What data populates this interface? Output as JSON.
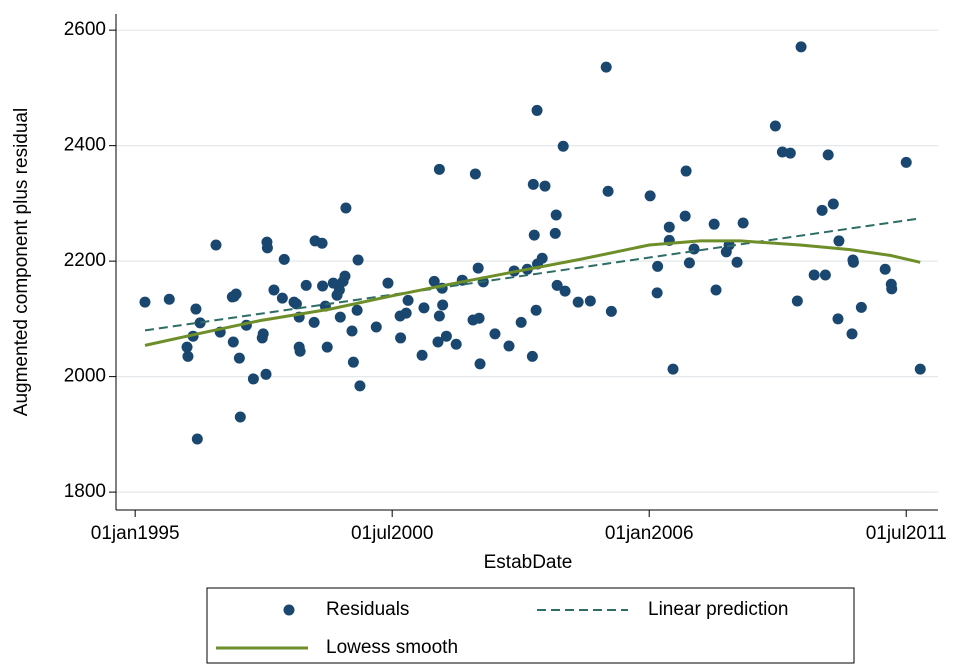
{
  "chart_data": {
    "type": "scatter",
    "x_label": "EstabDate",
    "y_label": "Augmented component plus residual",
    "xlim": [
      1994.59,
      2012.18
    ],
    "ylim": [
      1769,
      2628
    ],
    "xticks": [
      {
        "value": 1995.0,
        "label": "01jan1995"
      },
      {
        "value": 2000.5,
        "label": "01jul2000"
      },
      {
        "value": 2006.0,
        "label": "01jan2006"
      },
      {
        "value": 2011.5,
        "label": "01jul2011"
      }
    ],
    "yticks": [
      1800,
      2000,
      2200,
      2400,
      2600
    ],
    "grid": true,
    "legend": "bottom",
    "series": [
      {
        "name": "Residuals",
        "type": "scatter",
        "color": "#1a476f",
        "x": [
          1995.21,
          1995.73,
          1996.11,
          1996.13,
          1996.24,
          1996.3,
          1996.33,
          1996.39,
          1996.73,
          1996.82,
          1997.08,
          1997.1,
          1997.12,
          1997.16,
          1997.23,
          1997.25,
          1997.38,
          1997.53,
          1997.72,
          1997.74,
          1997.8,
          1997.82,
          1997.83,
          1997.97,
          1998.15,
          1998.19,
          1998.4,
          1998.45,
          1998.51,
          1998.51,
          1998.53,
          1998.66,
          1998.83,
          1998.85,
          1999.0,
          1999.01,
          1999.07,
          1999.11,
          1999.24,
          1999.32,
          1999.37,
          1999.39,
          1999.45,
          1999.49,
          1999.51,
          1999.64,
          1999.67,
          1999.75,
          1999.77,
          1999.81,
          2000.16,
          2000.41,
          2000.67,
          2000.68,
          2000.8,
          2000.84,
          2001.14,
          2001.18,
          2001.4,
          2001.48,
          2001.51,
          2001.51,
          2001.57,
          2001.58,
          2001.66,
          2001.87,
          2002.0,
          2002.23,
          2002.28,
          2002.34,
          2002.36,
          2002.38,
          2002.45,
          2002.7,
          2003.0,
          2003.11,
          2003.26,
          2003.39,
          2003.5,
          2003.52,
          2003.54,
          2003.58,
          2003.6,
          2003.61,
          2003.71,
          2003.77,
          2003.99,
          2004.01,
          2004.03,
          2004.16,
          2004.2,
          2004.48,
          2004.74,
          2005.08,
          2005.12,
          2005.19,
          2006.02,
          2006.17,
          2006.18,
          2006.43,
          2006.43,
          2006.51,
          2006.77,
          2006.79,
          2006.86,
          2006.96,
          2007.39,
          2007.43,
          2007.65,
          2007.71,
          2007.88,
          2008.01,
          2008.7,
          2008.85,
          2009.02,
          2009.17,
          2009.25,
          2009.53,
          2009.7,
          2009.77,
          2009.83,
          2009.94,
          2010.04,
          2010.06,
          2010.34,
          2010.36,
          2010.37,
          2010.54,
          2011.05,
          2011.18,
          2011.19,
          2011.5,
          2011.8
        ],
        "values": [
          2129,
          2134,
          2051,
          2035,
          2070,
          2117,
          1892,
          2093,
          2228,
          2077,
          2138,
          2060,
          2139,
          2143,
          2032,
          1930,
          2089,
          1996,
          2067,
          2074,
          2004,
          2233,
          2223,
          2150,
          2136,
          2203,
          2129,
          2126,
          2103,
          2051,
          2044,
          2158,
          2094,
          2235,
          2231,
          2157,
          2122,
          2051,
          2162,
          2141,
          2150,
          2103,
          2165,
          2174,
          2292,
          2079,
          2025,
          2115,
          2202,
          1984,
          2086,
          2162,
          2105,
          2067,
          2110,
          2132,
          2037,
          2119,
          2165,
          2060,
          2105,
          2359,
          2153,
          2124,
          2070,
          2056,
          2167,
          2098,
          2351,
          2188,
          2101,
          2022,
          2164,
          2074,
          2053,
          2183,
          2094,
          2186,
          2035,
          2333,
          2245,
          2115,
          2461,
          2195,
          2205,
          2330,
          2248,
          2280,
          2158,
          2399,
          2148,
          2129,
          2131,
          2536,
          2321,
          2113,
          2313,
          2145,
          2191,
          2236,
          2259,
          2013,
          2278,
          2356,
          2197,
          2221,
          2264,
          2150,
          2216,
          2228,
          2198,
          2266,
          2434,
          2389,
          2387,
          2131,
          2571,
          2176,
          2288,
          2176,
          2384,
          2299,
          2100,
          2235,
          2074,
          2202,
          2198,
          2120,
          2186,
          2160,
          2152,
          2371,
          2013
        ]
      },
      {
        "name": "Linear prediction",
        "type": "line",
        "dash": true,
        "color": "#2d6d66",
        "x": [
          1995.21,
          2011.8
        ],
        "values": [
          2080,
          2274
        ]
      },
      {
        "name": "Lowess smooth",
        "type": "line",
        "color": "#6e8e2a",
        "x": [
          1995.21,
          1996.39,
          1997.67,
          1999.17,
          2000.5,
          2001.74,
          2003.02,
          2004.52,
          2006.0,
          2007.09,
          2007.95,
          2009.23,
          2010.3,
          2011.16,
          2011.8
        ],
        "values": [
          2054,
          2075,
          2097,
          2117,
          2140,
          2160,
          2180,
          2203,
          2228,
          2235,
          2235,
          2228,
          2220,
          2210,
          2198
        ]
      }
    ]
  }
}
